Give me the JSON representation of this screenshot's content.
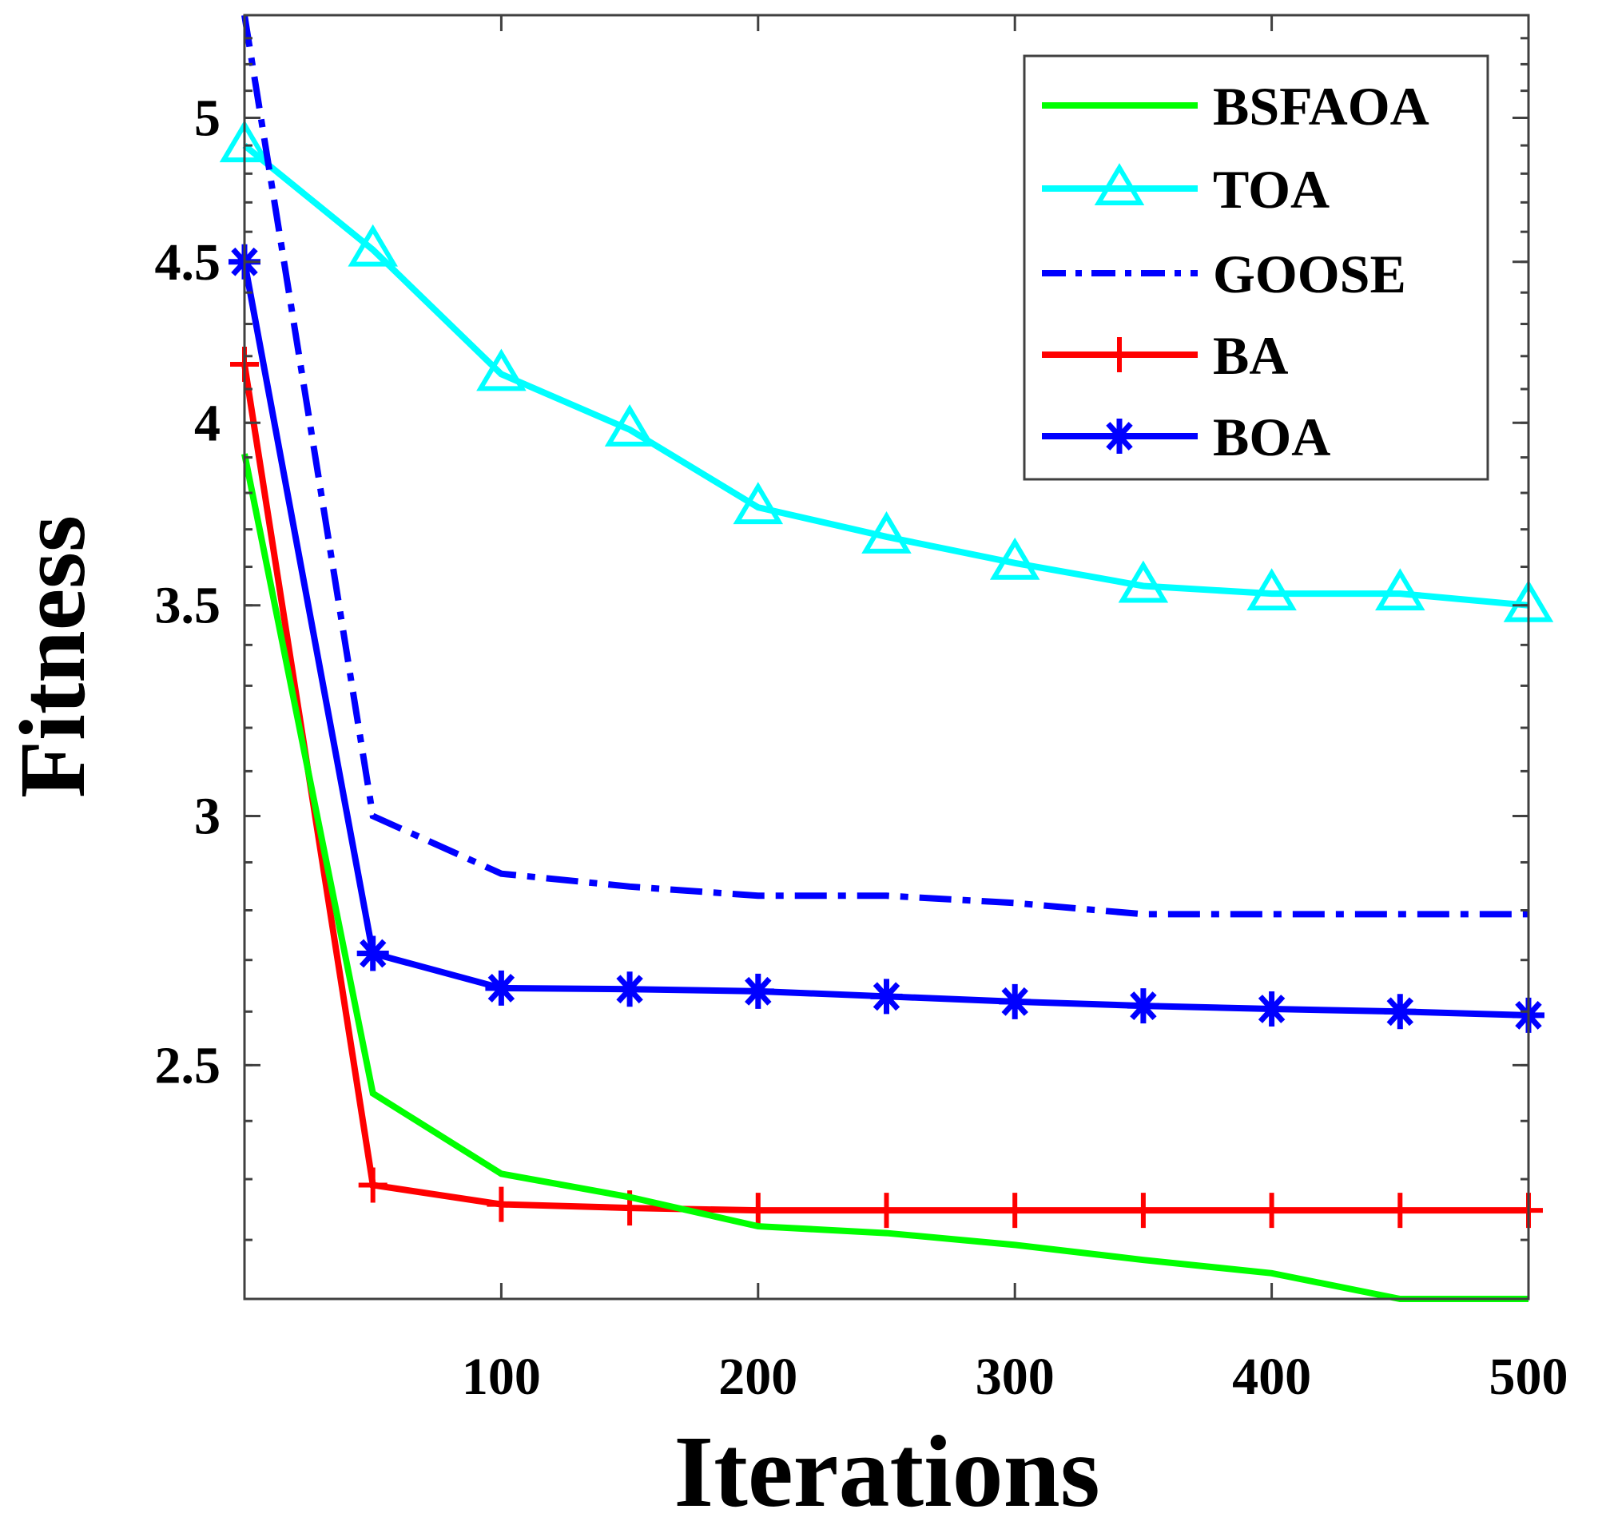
{
  "chart_data": {
    "type": "line",
    "title": "",
    "xlabel": "Iterations",
    "ylabel": "Fitness",
    "xlim": [
      0,
      500
    ],
    "ylim": [
      2.107,
      5.39
    ],
    "yscale": "log",
    "xticks": [
      100,
      200,
      300,
      400,
      500
    ],
    "xtick_labels": [
      "100",
      "200",
      "300",
      "400",
      "500"
    ],
    "yticks": [
      2.5,
      3,
      3.5,
      4,
      4.5,
      5
    ],
    "ytick_labels": [
      "2.5",
      "3",
      "3.5",
      "4",
      "4.5",
      "5"
    ],
    "grid": false,
    "legend_position": "top-right",
    "x": [
      0,
      50,
      100,
      150,
      200,
      250,
      300,
      350,
      400,
      450,
      500
    ],
    "series": [
      {
        "name": "BSFAOA",
        "color": "#00ff00",
        "style": "solid",
        "marker": "none",
        "values": [
          3.91,
          2.449,
          2.309,
          2.27,
          2.222,
          2.211,
          2.192,
          2.168,
          2.147,
          2.107,
          2.107
        ]
      },
      {
        "name": "TOA",
        "color": "#00ffff",
        "style": "solid",
        "marker": "triangle",
        "values": [
          4.9,
          4.54,
          4.145,
          3.98,
          3.76,
          3.68,
          3.61,
          3.55,
          3.53,
          3.53,
          3.5
        ]
      },
      {
        "name": "GOOSE",
        "color": "#0000ff",
        "style": "dashdot",
        "marker": "none",
        "values": [
          5.39,
          3.0,
          2.876,
          2.849,
          2.83,
          2.83,
          2.815,
          2.792,
          2.792,
          2.792,
          2.792
        ]
      },
      {
        "name": "BA",
        "color": "#ff0000",
        "style": "solid",
        "marker": "plus",
        "values": [
          4.175,
          2.29,
          2.258,
          2.252,
          2.248,
          2.248,
          2.248,
          2.248,
          2.248,
          2.248,
          2.248
        ]
      },
      {
        "name": "BOA",
        "color": "#0000ff",
        "style": "solid",
        "marker": "asterisk",
        "values": [
          4.5,
          2.713,
          2.645,
          2.643,
          2.639,
          2.629,
          2.619,
          2.611,
          2.605,
          2.6,
          2.593
        ]
      }
    ]
  }
}
